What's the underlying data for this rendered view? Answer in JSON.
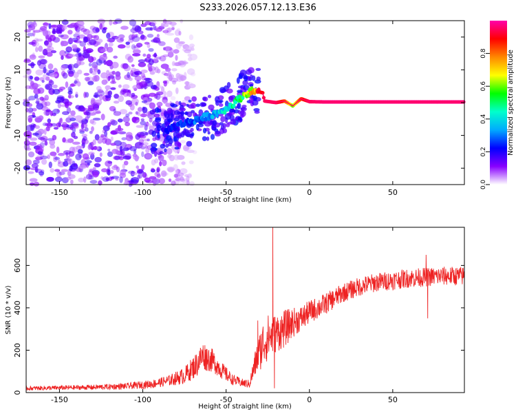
{
  "title": "S233.2026.057.12.13.E36",
  "colors": {
    "snr_line": "#ee2222",
    "frame": "#000000",
    "colormap": [
      "#ffffff",
      "#8800ff",
      "#0000ff",
      "#00aaff",
      "#00ffcc",
      "#00ff00",
      "#ffff00",
      "#ff8800",
      "#ff0000",
      "#ff00aa"
    ]
  },
  "chart_data": [
    {
      "type": "heatmap",
      "name": "spectrogram",
      "xlabel": "Height of straight line (km)",
      "ylabel": "Frequency (Hz)",
      "xlim": [
        -170,
        93
      ],
      "ylim": [
        -25,
        25
      ],
      "x_ticks": [
        -150,
        -100,
        -50,
        0,
        50
      ],
      "y_ticks": [
        -20,
        -10,
        0,
        10,
        20
      ],
      "colorbar": {
        "label": "Normalized spectral amplitude",
        "range": [
          0,
          1
        ],
        "ticks": [
          0.0,
          0.2,
          0.4,
          0.6,
          0.8
        ]
      },
      "ridge": {
        "description": "tone frequency vs height",
        "x": [
          -88,
          -80,
          -70,
          -60,
          -50,
          -45,
          -40,
          -35,
          -32,
          -28,
          -27,
          -20,
          -15,
          -10,
          -5,
          0,
          10,
          30,
          60,
          90
        ],
        "freq": [
          -9,
          -7,
          -5.5,
          -4,
          -2,
          0,
          2,
          3.5,
          3.5,
          3,
          0.5,
          0,
          0.5,
          -1,
          1.2,
          0.3,
          0.2,
          0.2,
          0.2,
          0.2
        ],
        "amplitude": [
          0.2,
          0.25,
          0.3,
          0.35,
          0.45,
          0.55,
          0.6,
          0.75,
          0.9,
          0.9,
          0.95,
          0.95,
          0.85,
          0.6,
          0.85,
          0.95,
          0.97,
          0.97,
          0.97,
          0.97
        ]
      },
      "noise_region": {
        "x_range": [
          -170,
          -90
        ],
        "freq_range": [
          -25,
          25
        ],
        "amplitude": 0.15
      }
    },
    {
      "type": "line",
      "name": "snr",
      "xlabel": "Height of straight line (km)",
      "ylabel": "SNR (10 * v/v)",
      "xlim": [
        -170,
        93
      ],
      "ylim": [
        0,
        780
      ],
      "x_ticks": [
        -150,
        -100,
        -50,
        0,
        50
      ],
      "y_ticks": [
        0,
        200,
        400,
        600
      ],
      "baseline": {
        "x": [
          -170,
          -130,
          -110,
          -95,
          -85,
          -75,
          -68,
          -64,
          -58,
          -52,
          -46,
          -40,
          -36,
          -32,
          -28,
          -25,
          -20,
          -15,
          -10,
          -5,
          0,
          10,
          20,
          30,
          40,
          50,
          60,
          70,
          80,
          93
        ],
        "y": [
          20,
          25,
          30,
          40,
          55,
          80,
          130,
          175,
          150,
          100,
          60,
          45,
          40,
          150,
          230,
          260,
          280,
          300,
          330,
          350,
          380,
          420,
          470,
          500,
          520,
          530,
          540,
          545,
          550,
          550
        ]
      },
      "noise_amplitude": [
        10,
        12,
        15,
        20,
        25,
        40,
        60,
        70,
        55,
        40,
        25,
        20,
        20,
        70,
        110,
        110,
        90,
        90,
        70,
        60,
        55,
        50,
        45,
        45,
        45,
        45,
        45,
        45,
        45,
        45
      ],
      "spikes": [
        {
          "x": -31,
          "y": 340
        },
        {
          "x": -22,
          "y": 780
        },
        {
          "x": -21,
          "y": 20
        },
        {
          "x": 70,
          "y": 650
        },
        {
          "x": 71,
          "y": 350
        }
      ]
    }
  ]
}
